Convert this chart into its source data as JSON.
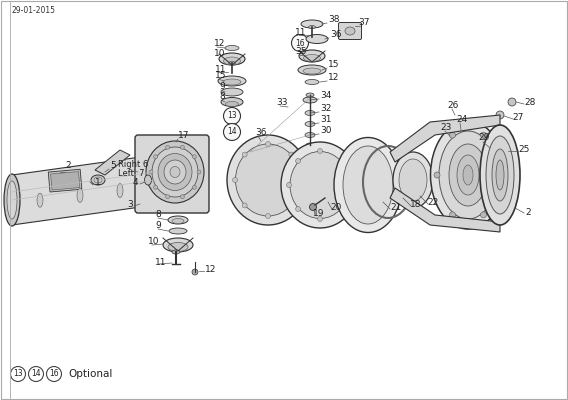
{
  "date_text": "29-01-2015",
  "bg_color": "#ffffff",
  "line_color": "#555555",
  "dark_color": "#333333",
  "light_fill": "#e8e8e8",
  "mid_fill": "#d0d0d0",
  "dark_fill": "#b8b8b8",
  "optional_text": "Optional",
  "figsize": [
    5.68,
    4.0
  ],
  "dpi": 100
}
